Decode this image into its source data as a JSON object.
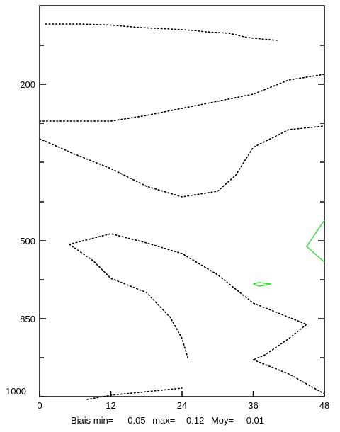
{
  "chart_data": {
    "type": "contour",
    "title": "",
    "xlabel": "",
    "ylabel": "",
    "xlim": [
      0,
      48
    ],
    "ylim_labels": [
      "200",
      "500",
      "850",
      "1000"
    ],
    "x_ticks": [
      {
        "value": 0,
        "label": "0"
      },
      {
        "value": 12,
        "label": "12"
      },
      {
        "value": 24,
        "label": "24"
      },
      {
        "value": 36,
        "label": "36"
      },
      {
        "value": 48,
        "label": "48"
      }
    ],
    "y_ticks": [
      {
        "value": 200,
        "label": "200"
      },
      {
        "value": 500,
        "label": "500"
      },
      {
        "value": 850,
        "label": "850"
      },
      {
        "value": 1000,
        "label": "1000"
      }
    ],
    "footer": {
      "label_prefix": "Biais min=",
      "min": "-0.05",
      "max_label": "max=",
      "max": "0.12",
      "moy_label": "Moy=",
      "moy": "0.01"
    },
    "colors": {
      "dotted_contour": "#000000",
      "positive_contour": "#33dd33"
    },
    "contours": [
      {
        "style": "dotted",
        "points": [
          [
            1,
            26
          ],
          [
            7,
            26
          ],
          [
            12,
            27.5
          ],
          [
            17,
            31
          ],
          [
            22,
            33
          ],
          [
            26,
            35
          ],
          [
            28,
            37
          ],
          [
            32,
            39
          ],
          [
            35,
            45
          ],
          [
            40,
            49
          ]
        ]
      },
      {
        "style": "dotted",
        "points": [
          [
            0,
            163
          ],
          [
            6,
            163
          ],
          [
            12,
            163
          ],
          [
            18,
            155
          ],
          [
            24,
            145
          ],
          [
            30,
            135
          ],
          [
            36,
            125
          ],
          [
            42,
            105
          ],
          [
            48,
            97
          ]
        ]
      },
      {
        "style": "dotted",
        "points": [
          [
            0,
            188
          ],
          [
            6,
            210
          ],
          [
            12,
            230
          ],
          [
            18,
            255
          ],
          [
            24,
            270
          ],
          [
            30,
            262
          ],
          [
            33,
            240
          ],
          [
            36,
            200
          ],
          [
            42,
            175
          ],
          [
            48,
            170
          ]
        ]
      },
      {
        "style": "dotted",
        "points": [
          [
            5,
            337
          ],
          [
            12,
            322
          ],
          [
            18,
            335
          ],
          [
            24,
            350
          ],
          [
            30,
            380
          ],
          [
            36,
            420
          ],
          [
            42,
            440
          ],
          [
            45,
            450
          ],
          [
            42,
            470
          ],
          [
            38,
            493
          ],
          [
            36,
            500
          ]
        ]
      },
      {
        "style": "dotted",
        "points": [
          [
            5,
            337
          ],
          [
            9,
            360
          ],
          [
            12,
            385
          ],
          [
            18,
            405
          ],
          [
            22,
            440
          ],
          [
            24,
            470
          ],
          [
            25,
            498
          ]
        ]
      },
      {
        "style": "dotted",
        "points": [
          [
            36,
            500
          ],
          [
            42,
            520
          ],
          [
            48,
            548
          ]
        ]
      },
      {
        "style": "dotted",
        "points": [
          [
            8,
            556
          ],
          [
            12,
            550
          ],
          [
            18,
            545
          ],
          [
            24,
            540
          ]
        ]
      },
      {
        "style": "solid",
        "color": "positive",
        "points": [
          [
            48,
            303
          ],
          [
            45,
            340
          ],
          [
            48,
            362
          ]
        ]
      },
      {
        "style": "solid",
        "color": "positive",
        "points": [
          [
            36,
            393
          ],
          [
            37,
            391
          ],
          [
            39,
            393
          ],
          [
            37,
            396
          ],
          [
            36,
            393
          ]
        ]
      }
    ]
  }
}
